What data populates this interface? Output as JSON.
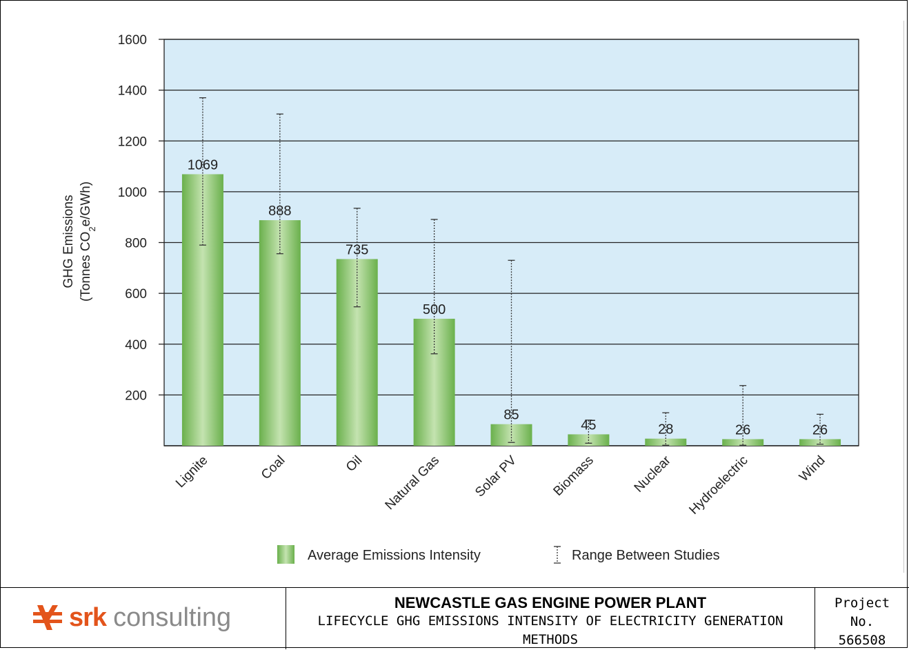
{
  "chart_data": {
    "type": "bar",
    "title": "",
    "ylabel_line1": "GHG Emissions",
    "ylabel_line2_pre": "(Tonnes CO",
    "ylabel_line2_sub": "2",
    "ylabel_line2_post": "e/GWh)",
    "xlabel": "",
    "ylim": [
      0,
      1600
    ],
    "yticks": [
      200,
      400,
      600,
      800,
      1000,
      1200,
      1400,
      1600
    ],
    "grid": true,
    "categories": [
      "Lignite",
      "Coal",
      "Oil",
      "Natural Gas",
      "Solar PV",
      "Biomass",
      "Nuclear",
      "Hydroelectric",
      "Wind"
    ],
    "series": [
      {
        "name": "Average Emissions Intensity",
        "values": [
          1069,
          888,
          735,
          500,
          85,
          45,
          28,
          26,
          26
        ],
        "labels": [
          "1069",
          "888",
          "735",
          "500",
          "85",
          "45",
          "28",
          "26",
          "26"
        ]
      }
    ],
    "ranges": [
      {
        "low": 790,
        "high": 1370
      },
      {
        "low": 756,
        "high": 1306
      },
      {
        "low": 547,
        "high": 935
      },
      {
        "low": 362,
        "high": 891
      },
      {
        "low": 13,
        "high": 730
      },
      {
        "low": 10,
        "high": 101
      },
      {
        "low": 2,
        "high": 130
      },
      {
        "low": 2,
        "high": 237
      },
      {
        "low": 6,
        "high": 124
      }
    ],
    "legend": {
      "placement": "bottom",
      "bar_label": "Average Emissions Intensity",
      "range_label": "Range Between Studies"
    },
    "colors": {
      "plot_bg": "#d7ecf8",
      "bar_edge": "#6ab04c",
      "bar_light": "#c4e3b0",
      "grid": "#222222"
    }
  },
  "footer": {
    "logo_srk": "srk",
    "logo_consulting": "consulting",
    "title": "NEWCASTLE GAS ENGINE POWER PLANT",
    "subtitle": "LIFECYCLE GHG EMISSIONS INTENSITY OF ELECTRICITY GENERATION METHODS",
    "project_label_1": "Project",
    "project_label_2": "No.",
    "project_number": "566508"
  }
}
